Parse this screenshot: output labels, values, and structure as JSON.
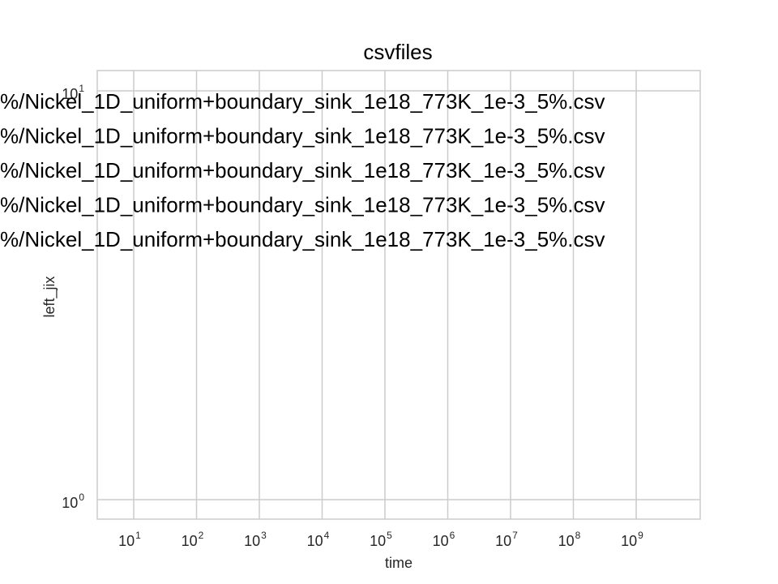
{
  "chart_data": {
    "type": "line",
    "title": "csvfiles",
    "xlabel": "time",
    "ylabel": "left_jix",
    "xscale": "log",
    "yscale": "log",
    "x_ticks": [
      {
        "base": "10",
        "exp": "1",
        "value": 10
      },
      {
        "base": "10",
        "exp": "2",
        "value": 100
      },
      {
        "base": "10",
        "exp": "3",
        "value": 1000
      },
      {
        "base": "10",
        "exp": "4",
        "value": 10000
      },
      {
        "base": "10",
        "exp": "5",
        "value": 100000
      },
      {
        "base": "10",
        "exp": "6",
        "value": 1000000
      },
      {
        "base": "10",
        "exp": "7",
        "value": 10000000
      },
      {
        "base": "10",
        "exp": "8",
        "value": 100000000
      },
      {
        "base": "10",
        "exp": "9",
        "value": 1000000000
      }
    ],
    "y_ticks": [
      {
        "base": "10",
        "exp": "0",
        "value": 1
      },
      {
        "base": "10",
        "exp": "1",
        "value": 10
      }
    ],
    "grid": true,
    "legend_placement": "top-left",
    "series": [
      {
        "name": "%/Nickel_1D_uniform+boundary_sink_1e18_773K_1e-3_5%.csv",
        "x": [],
        "y": []
      },
      {
        "name": "%/Nickel_1D_uniform+boundary_sink_1e18_773K_1e-3_5%.csv",
        "x": [],
        "y": []
      },
      {
        "name": "%/Nickel_1D_uniform+boundary_sink_1e18_773K_1e-3_5%.csv",
        "x": [],
        "y": []
      },
      {
        "name": "%/Nickel_1D_uniform+boundary_sink_1e18_773K_1e-3_5%.csv",
        "x": [],
        "y": []
      },
      {
        "name": "%/Nickel_1D_uniform+boundary_sink_1e18_773K_1e-3_5%.csv",
        "x": [],
        "y": []
      }
    ],
    "colors": {
      "grid": "#cccccc",
      "frame": "#cccccc",
      "text": "#262626"
    }
  }
}
